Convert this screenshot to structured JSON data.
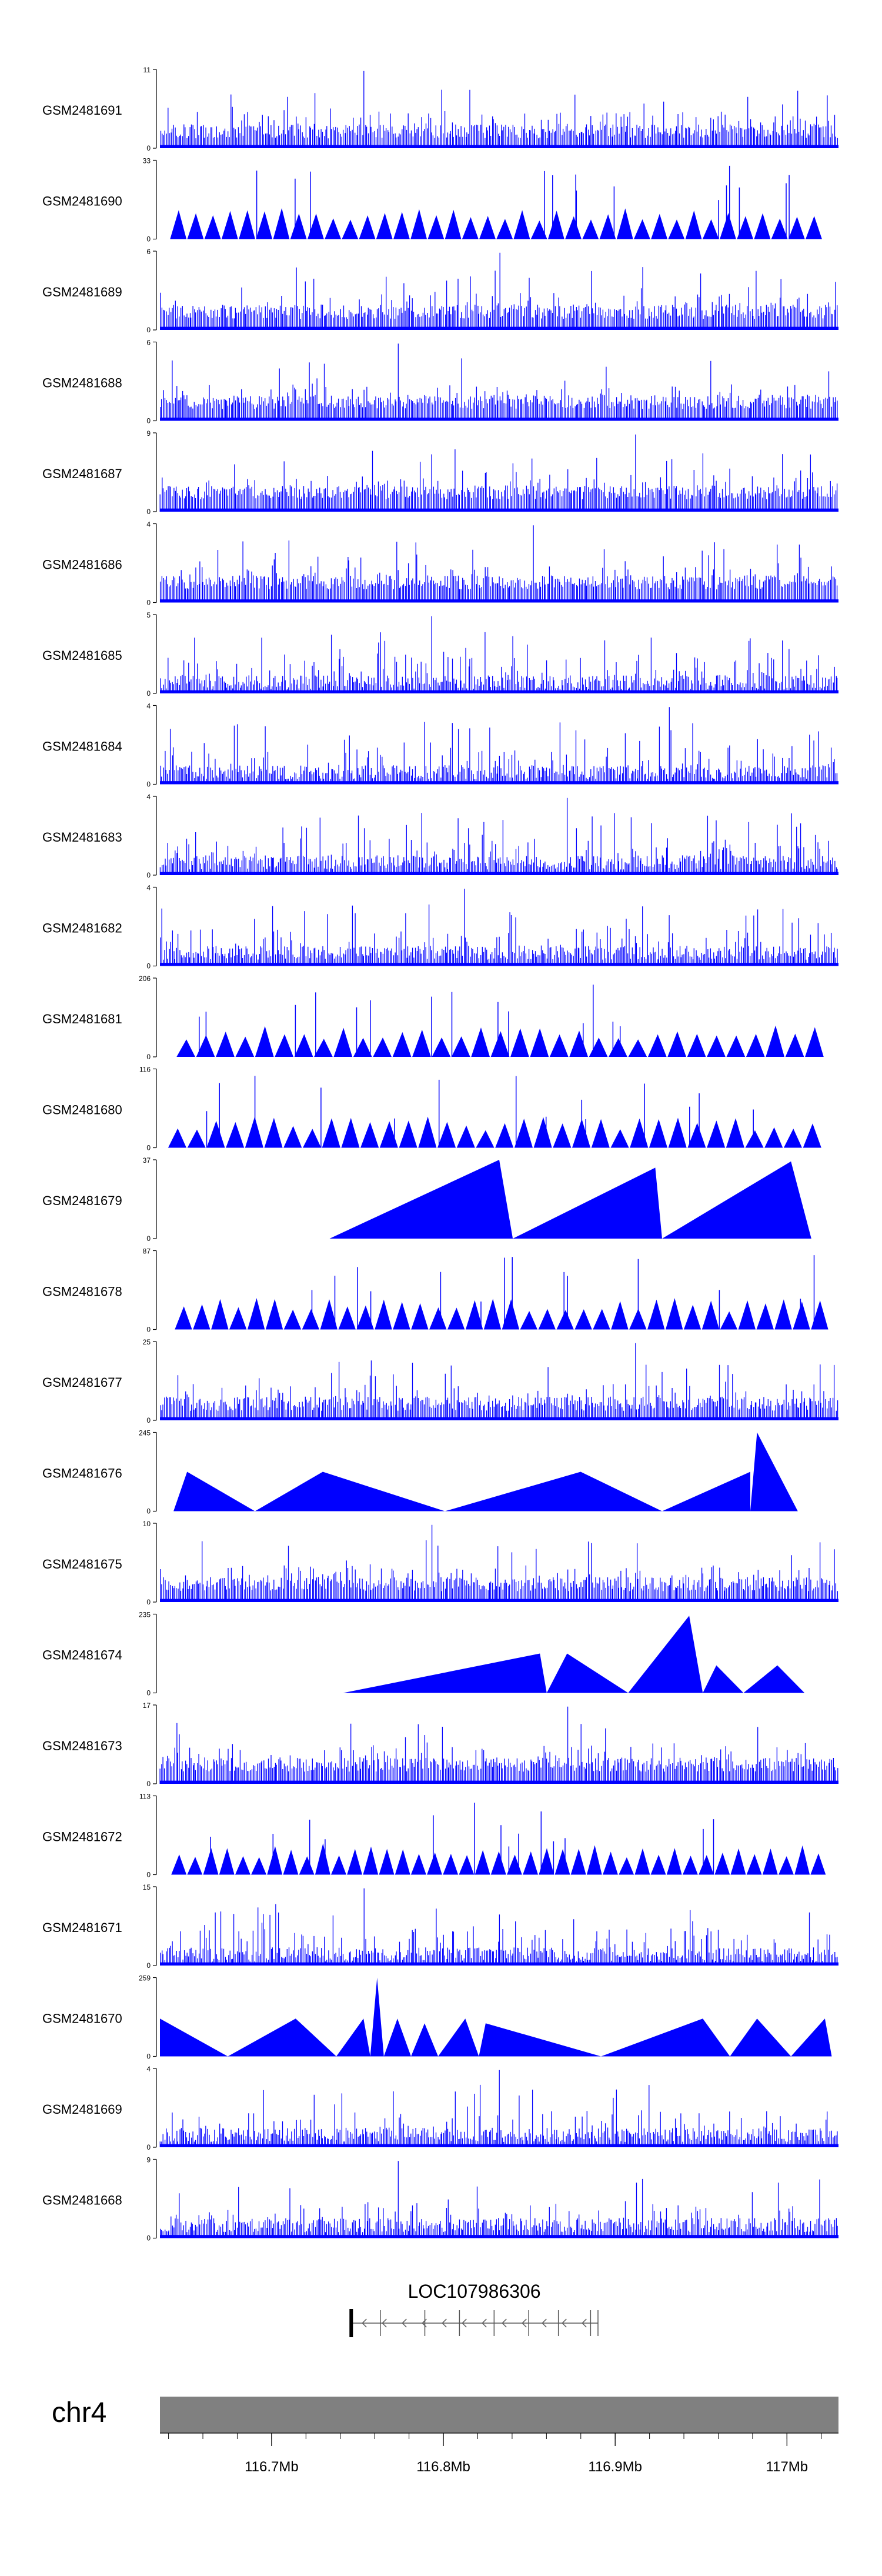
{
  "figure": {
    "chromosome": "chr4",
    "gene_label": "LOC107986306",
    "x_axis": {
      "range": [
        116.635,
        117.03
      ],
      "ticks": [
        {
          "value": 116.7,
          "label": "116.7Mb"
        },
        {
          "value": 116.8,
          "label": "116.8Mb"
        },
        {
          "value": 116.9,
          "label": "116.9Mb"
        },
        {
          "value": 117.0,
          "label": "117Mb"
        }
      ]
    },
    "colors": {
      "signal": "#0000ff",
      "ideogram": "#808080",
      "axis": "#000000"
    }
  },
  "chart_data": {
    "type": "area",
    "title": "",
    "xlabel": "",
    "ylabel": "",
    "x_unit": "Mb",
    "xlim": [
      116.635,
      117.03
    ],
    "tracks": [
      {
        "name": "GSM2481691",
        "ymax": 11,
        "style": "spiky"
      },
      {
        "name": "GSM2481690",
        "ymax": 33,
        "style": "triangles"
      },
      {
        "name": "GSM2481689",
        "ymax": 6,
        "style": "spiky"
      },
      {
        "name": "GSM2481688",
        "ymax": 6,
        "style": "spiky"
      },
      {
        "name": "GSM2481687",
        "ymax": 9,
        "style": "spiky"
      },
      {
        "name": "GSM2481686",
        "ymax": 4,
        "style": "spiky"
      },
      {
        "name": "GSM2481685",
        "ymax": 5,
        "style": "spiky"
      },
      {
        "name": "GSM2481684",
        "ymax": 4,
        "style": "spiky"
      },
      {
        "name": "GSM2481683",
        "ymax": 4,
        "style": "spiky"
      },
      {
        "name": "GSM2481682",
        "ymax": 4,
        "style": "spiky"
      },
      {
        "name": "GSM2481681",
        "ymax": 206,
        "style": "triangles"
      },
      {
        "name": "GSM2481680",
        "ymax": 116,
        "style": "triangles"
      },
      {
        "name": "GSM2481679",
        "ymax": 37,
        "style": "big-triangles"
      },
      {
        "name": "GSM2481678",
        "ymax": 87,
        "style": "triangles"
      },
      {
        "name": "GSM2481677",
        "ymax": 25,
        "style": "spiky"
      },
      {
        "name": "GSM2481676",
        "ymax": 245,
        "style": "big-triangles"
      },
      {
        "name": "GSM2481675",
        "ymax": 10,
        "style": "spiky"
      },
      {
        "name": "GSM2481674",
        "ymax": 235,
        "style": "big-triangles"
      },
      {
        "name": "GSM2481673",
        "ymax": 17,
        "style": "spiky"
      },
      {
        "name": "GSM2481672",
        "ymax": 113,
        "style": "triangles"
      },
      {
        "name": "GSM2481671",
        "ymax": 15,
        "style": "spiky"
      },
      {
        "name": "GSM2481670",
        "ymax": 259,
        "style": "big-triangles"
      },
      {
        "name": "GSM2481669",
        "ymax": 4,
        "style": "spiky"
      },
      {
        "name": "GSM2481668",
        "ymax": 9,
        "style": "spiky"
      }
    ],
    "gene": {
      "name": "LOC107986306",
      "start": 116.746,
      "end": 116.89,
      "strand": "-"
    }
  }
}
